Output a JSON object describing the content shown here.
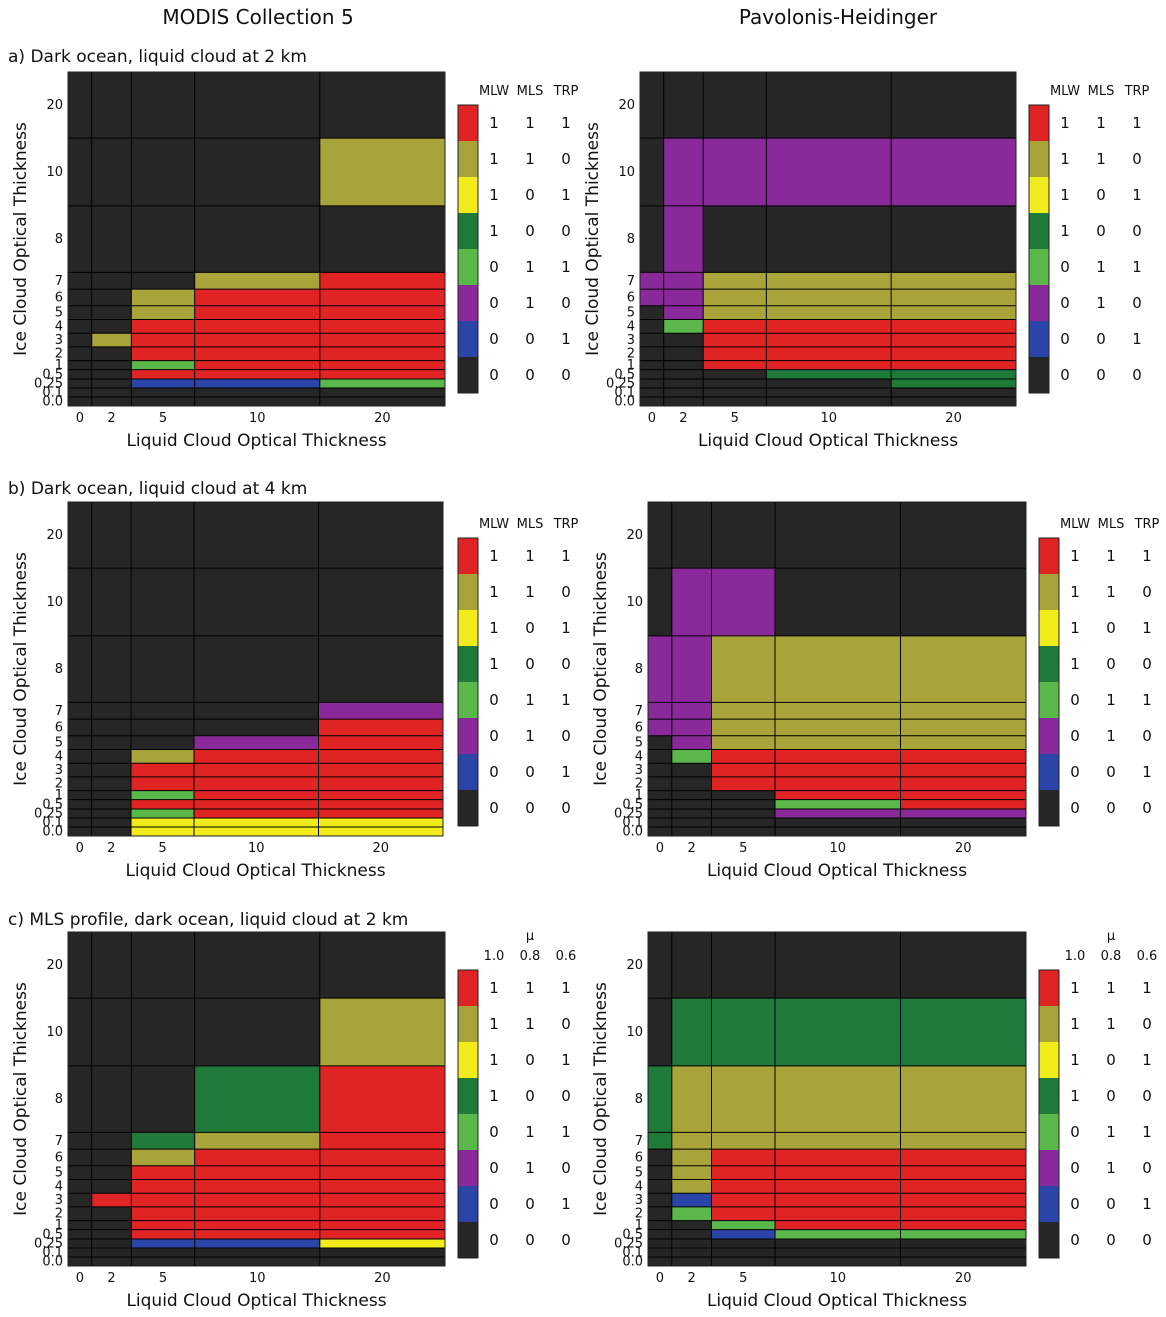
{
  "column_titles": [
    "MODIS Collection 5",
    "Pavolonis-Heidinger"
  ],
  "row_titles": [
    "a) Dark ocean, liquid cloud at 2 km",
    "b) Dark ocean, liquid cloud at 4 km",
    "c) MLS profile, dark ocean, liquid cloud at 2 km"
  ],
  "colors": {
    "red": "#e02424",
    "olive": "#a8a43a",
    "yellow": "#f2ec1c",
    "dgreen": "#1f7a3a",
    "lgreen": "#5ab84a",
    "purple": "#8a2a9a",
    "blue": "#2a44a8",
    "black": "#262626"
  },
  "legend_color_order": [
    "red",
    "olive",
    "yellow",
    "dgreen",
    "lgreen",
    "purple",
    "blue",
    "black"
  ],
  "legends": {
    "profile": {
      "headers": [
        "MLW",
        "MLS",
        "TRP"
      ],
      "mu_label": "",
      "rows": [
        [
          "1",
          "1",
          "1"
        ],
        [
          "1",
          "1",
          "0"
        ],
        [
          "1",
          "0",
          "1"
        ],
        [
          "1",
          "0",
          "0"
        ],
        [
          "0",
          "1",
          "1"
        ],
        [
          "0",
          "1",
          "0"
        ],
        [
          "0",
          "0",
          "1"
        ],
        [
          "0",
          "0",
          "0"
        ]
      ]
    },
    "mu": {
      "headers": [
        "1.0",
        "0.8",
        "0.6"
      ],
      "mu_label": "μ",
      "rows": [
        [
          "1",
          "1",
          "1"
        ],
        [
          "1",
          "1",
          "0"
        ],
        [
          "1",
          "0",
          "1"
        ],
        [
          "1",
          "0",
          "0"
        ],
        [
          "0",
          "1",
          "1"
        ],
        [
          "0",
          "1",
          "0"
        ],
        [
          "0",
          "0",
          "1"
        ],
        [
          "0",
          "0",
          "0"
        ]
      ]
    }
  },
  "chart_data": [
    {
      "type": "heatmap",
      "panel": "a",
      "method": "MODIS Collection 5",
      "xlabel": "Liquid Cloud Optical Thickness",
      "ylabel": "Ice Cloud Optical Thickness",
      "x_ticks": [
        "0",
        "2",
        "5",
        "10",
        "20"
      ],
      "y_ticks": [
        "0.0",
        "0.1",
        "0.25",
        "0.5",
        "1",
        "2",
        "3",
        "4",
        "5",
        "6",
        "7",
        "8",
        "10",
        "20"
      ],
      "cells": [
        {
          "x": [
            "5",
            "20"
          ],
          "y": [
            "0.25",
            "0.25"
          ],
          "c": "blue"
        },
        {
          "x": [
            "20",
            "20"
          ],
          "y": [
            "0.25",
            "0.25"
          ],
          "c": "lgreen"
        },
        {
          "x": [
            "5",
            "5"
          ],
          "y": [
            "0.5",
            "0.5"
          ],
          "c": "red"
        },
        {
          "x": [
            "5",
            "5"
          ],
          "y": [
            "1",
            "1"
          ],
          "c": "lgreen"
        },
        {
          "x": [
            "5",
            "5"
          ],
          "y": [
            "2",
            "4"
          ],
          "c": "red"
        },
        {
          "x": [
            "2",
            "2"
          ],
          "y": [
            "3",
            "3"
          ],
          "c": "olive"
        },
        {
          "x": [
            "5",
            "5"
          ],
          "y": [
            "5",
            "6"
          ],
          "c": "olive"
        },
        {
          "x": [
            "10",
            "20"
          ],
          "y": [
            "0.5",
            "6"
          ],
          "c": "red"
        },
        {
          "x": [
            "20",
            "20"
          ],
          "y": [
            "7",
            "7"
          ],
          "c": "red"
        },
        {
          "x": [
            "10",
            "10"
          ],
          "y": [
            "7",
            "7"
          ],
          "c": "olive"
        },
        {
          "x": [
            "20",
            "20"
          ],
          "y": [
            "10",
            "10"
          ],
          "c": "olive"
        }
      ]
    },
    {
      "type": "heatmap",
      "panel": "a",
      "method": "Pavolonis-Heidinger",
      "xlabel": "Liquid Cloud Optical Thickness",
      "ylabel": "Ice Cloud Optical Thickness",
      "x_ticks": [
        "0",
        "2",
        "5",
        "10",
        "20"
      ],
      "y_ticks": [
        "0.0",
        "0.1",
        "0.25",
        "0.5",
        "1",
        "2",
        "3",
        "4",
        "5",
        "6",
        "7",
        "8",
        "10",
        "20"
      ],
      "cells": [
        {
          "x": [
            "10",
            "20"
          ],
          "y": [
            "0.5",
            "0.5"
          ],
          "c": "dgreen"
        },
        {
          "x": [
            "20",
            "20"
          ],
          "y": [
            "0.25",
            "0.25"
          ],
          "c": "dgreen"
        },
        {
          "x": [
            "5",
            "20"
          ],
          "y": [
            "1",
            "4"
          ],
          "c": "red"
        },
        {
          "x": [
            "2",
            "2"
          ],
          "y": [
            "4",
            "4"
          ],
          "c": "lgreen"
        },
        {
          "x": [
            "2",
            "2"
          ],
          "y": [
            "5",
            "8"
          ],
          "c": "purple"
        },
        {
          "x": [
            "0",
            "0"
          ],
          "y": [
            "6",
            "7"
          ],
          "c": "purple"
        },
        {
          "x": [
            "5",
            "20"
          ],
          "y": [
            "5",
            "7"
          ],
          "c": "olive"
        },
        {
          "x": [
            "2",
            "20"
          ],
          "y": [
            "10",
            "10"
          ],
          "c": "purple"
        }
      ]
    },
    {
      "type": "heatmap",
      "panel": "b",
      "method": "MODIS Collection 5",
      "xlabel": "Liquid Cloud Optical Thickness",
      "ylabel": "Ice Cloud Optical Thickness",
      "x_ticks": [
        "0",
        "2",
        "5",
        "10",
        "20"
      ],
      "y_ticks": [
        "0.0",
        "0.1",
        "0.25",
        "0.5",
        "1",
        "2",
        "3",
        "4",
        "5",
        "6",
        "7",
        "8",
        "10",
        "20"
      ],
      "cells": [
        {
          "x": [
            "5",
            "20"
          ],
          "y": [
            "0.0",
            "0.1"
          ],
          "c": "yellow"
        },
        {
          "x": [
            "5",
            "5"
          ],
          "y": [
            "0.25",
            "0.25"
          ],
          "c": "lgreen"
        },
        {
          "x": [
            "5",
            "5"
          ],
          "y": [
            "0.5",
            "0.5"
          ],
          "c": "red"
        },
        {
          "x": [
            "5",
            "5"
          ],
          "y": [
            "1",
            "1"
          ],
          "c": "lgreen"
        },
        {
          "x": [
            "5",
            "5"
          ],
          "y": [
            "2",
            "3"
          ],
          "c": "red"
        },
        {
          "x": [
            "5",
            "5"
          ],
          "y": [
            "4",
            "4"
          ],
          "c": "olive"
        },
        {
          "x": [
            "10",
            "20"
          ],
          "y": [
            "0.25",
            "4"
          ],
          "c": "red"
        },
        {
          "x": [
            "10",
            "10"
          ],
          "y": [
            "5",
            "5"
          ],
          "c": "purple"
        },
        {
          "x": [
            "20",
            "20"
          ],
          "y": [
            "5",
            "6"
          ],
          "c": "red"
        },
        {
          "x": [
            "20",
            "20"
          ],
          "y": [
            "7",
            "7"
          ],
          "c": "purple"
        }
      ]
    },
    {
      "type": "heatmap",
      "panel": "b",
      "method": "Pavolonis-Heidinger",
      "xlabel": "Liquid Cloud Optical Thickness",
      "ylabel": "Ice Cloud Optical Thickness",
      "x_ticks": [
        "0",
        "2",
        "5",
        "10",
        "20"
      ],
      "y_ticks": [
        "0.0",
        "0.1",
        "0.25",
        "0.5",
        "1",
        "2",
        "3",
        "4",
        "5",
        "6",
        "7",
        "8",
        "10",
        "20"
      ],
      "cells": [
        {
          "x": [
            "10",
            "20"
          ],
          "y": [
            "0.25",
            "0.25"
          ],
          "c": "purple"
        },
        {
          "x": [
            "10",
            "10"
          ],
          "y": [
            "0.5",
            "0.5"
          ],
          "c": "lgreen"
        },
        {
          "x": [
            "20",
            "20"
          ],
          "y": [
            "0.5",
            "0.5"
          ],
          "c": "red"
        },
        {
          "x": [
            "10",
            "20"
          ],
          "y": [
            "1",
            "1"
          ],
          "c": "red"
        },
        {
          "x": [
            "5",
            "20"
          ],
          "y": [
            "2",
            "4"
          ],
          "c": "red"
        },
        {
          "x": [
            "2",
            "2"
          ],
          "y": [
            "4",
            "4"
          ],
          "c": "lgreen"
        },
        {
          "x": [
            "2",
            "2"
          ],
          "y": [
            "5",
            "10"
          ],
          "c": "purple"
        },
        {
          "x": [
            "0",
            "0"
          ],
          "y": [
            "6",
            "8"
          ],
          "c": "purple"
        },
        {
          "x": [
            "5",
            "5"
          ],
          "y": [
            "10",
            "10"
          ],
          "c": "purple"
        },
        {
          "x": [
            "5",
            "20"
          ],
          "y": [
            "5",
            "8"
          ],
          "c": "olive"
        }
      ]
    },
    {
      "type": "heatmap",
      "panel": "c",
      "method": "MODIS Collection 5",
      "xlabel": "Liquid Cloud Optical Thickness",
      "ylabel": "Ice Cloud Optical Thickness",
      "x_ticks": [
        "0",
        "2",
        "5",
        "10",
        "20"
      ],
      "y_ticks": [
        "0.0",
        "0.1",
        "0.25",
        "0.5",
        "1",
        "2",
        "3",
        "4",
        "5",
        "6",
        "7",
        "8",
        "10",
        "20"
      ],
      "cells": [
        {
          "x": [
            "5",
            "10"
          ],
          "y": [
            "0.25",
            "0.25"
          ],
          "c": "blue"
        },
        {
          "x": [
            "20",
            "20"
          ],
          "y": [
            "0.25",
            "0.25"
          ],
          "c": "yellow"
        },
        {
          "x": [
            "5",
            "20"
          ],
          "y": [
            "0.5",
            "5"
          ],
          "c": "red"
        },
        {
          "x": [
            "2",
            "2"
          ],
          "y": [
            "3",
            "3"
          ],
          "c": "red"
        },
        {
          "x": [
            "5",
            "5"
          ],
          "y": [
            "6",
            "6"
          ],
          "c": "olive"
        },
        {
          "x": [
            "5",
            "5"
          ],
          "y": [
            "7",
            "7"
          ],
          "c": "dgreen"
        },
        {
          "x": [
            "10",
            "20"
          ],
          "y": [
            "6",
            "6"
          ],
          "c": "red"
        },
        {
          "x": [
            "10",
            "10"
          ],
          "y": [
            "7",
            "7"
          ],
          "c": "olive"
        },
        {
          "x": [
            "10",
            "10"
          ],
          "y": [
            "8",
            "8"
          ],
          "c": "dgreen"
        },
        {
          "x": [
            "20",
            "20"
          ],
          "y": [
            "7",
            "8"
          ],
          "c": "red"
        },
        {
          "x": [
            "20",
            "20"
          ],
          "y": [
            "10",
            "10"
          ],
          "c": "olive"
        }
      ]
    },
    {
      "type": "heatmap",
      "panel": "c",
      "method": "Pavolonis-Heidinger",
      "xlabel": "Liquid Cloud Optical Thickness",
      "ylabel": "Ice Cloud Optical Thickness",
      "x_ticks": [
        "0",
        "2",
        "5",
        "10",
        "20"
      ],
      "y_ticks": [
        "0.0",
        "0.1",
        "0.25",
        "0.5",
        "1",
        "2",
        "3",
        "4",
        "5",
        "6",
        "7",
        "8",
        "10",
        "20"
      ],
      "cells": [
        {
          "x": [
            "5",
            "5"
          ],
          "y": [
            "0.5",
            "0.5"
          ],
          "c": "blue"
        },
        {
          "x": [
            "10",
            "20"
          ],
          "y": [
            "0.5",
            "0.5"
          ],
          "c": "lgreen"
        },
        {
          "x": [
            "5",
            "5"
          ],
          "y": [
            "1",
            "1"
          ],
          "c": "lgreen"
        },
        {
          "x": [
            "2",
            "2"
          ],
          "y": [
            "2",
            "2"
          ],
          "c": "lgreen"
        },
        {
          "x": [
            "2",
            "2"
          ],
          "y": [
            "3",
            "3"
          ],
          "c": "blue"
        },
        {
          "x": [
            "10",
            "20"
          ],
          "y": [
            "1",
            "1"
          ],
          "c": "red"
        },
        {
          "x": [
            "5",
            "20"
          ],
          "y": [
            "2",
            "6"
          ],
          "c": "red"
        },
        {
          "x": [
            "2",
            "2"
          ],
          "y": [
            "4",
            "6"
          ],
          "c": "olive"
        },
        {
          "x": [
            "0",
            "0"
          ],
          "y": [
            "7",
            "8"
          ],
          "c": "dgreen"
        },
        {
          "x": [
            "2",
            "20"
          ],
          "y": [
            "7",
            "8"
          ],
          "c": "olive"
        },
        {
          "x": [
            "2",
            "20"
          ],
          "y": [
            "10",
            "10"
          ],
          "c": "dgreen"
        }
      ]
    }
  ]
}
